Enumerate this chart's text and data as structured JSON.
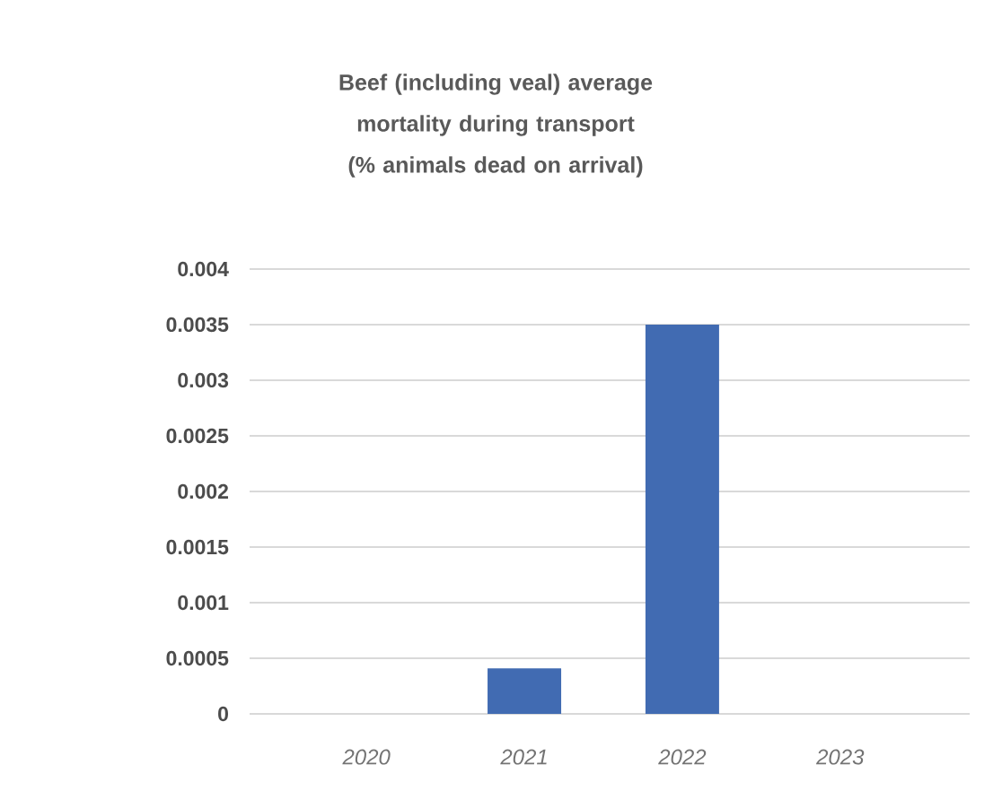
{
  "chart_data": {
    "type": "bar",
    "title": "Beef (including veal) average mortality during transport (% animals dead on arrival)",
    "categories": [
      "2020",
      "2021",
      "2022",
      "2023"
    ],
    "values": [
      null,
      0.00041,
      0.0035,
      null
    ],
    "color": "#416bb2",
    "ylim": [
      0,
      0.004
    ],
    "yticks": [
      0,
      0.0005,
      0.001,
      0.0015,
      0.002,
      0.0025,
      0.003,
      0.0035,
      0.004
    ],
    "grid": "y"
  }
}
